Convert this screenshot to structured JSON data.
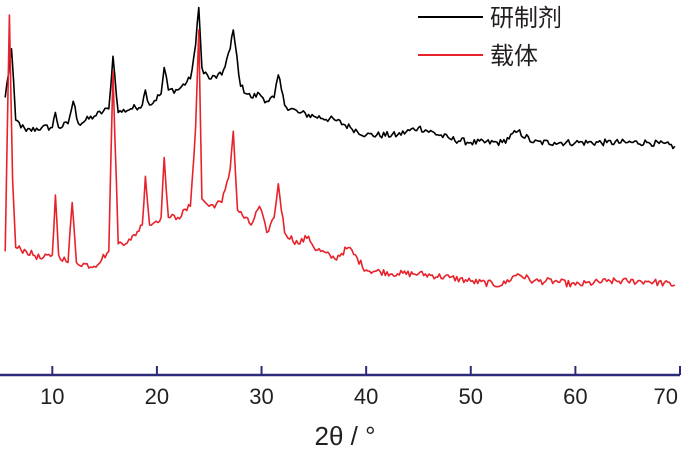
{
  "chart_data": {
    "type": "line",
    "xlabel": "2θ / °",
    "ylabel": "",
    "xlim": [
      5,
      70
    ],
    "xticks": [
      10,
      20,
      30,
      40,
      50,
      60,
      70
    ],
    "xtick_labels": [
      "10",
      "20",
      "30",
      "40",
      "50",
      "60",
      "70"
    ],
    "ylim": [
      0,
      100
    ],
    "yaxis_visible": false,
    "grid": false,
    "legend": "top-right",
    "series": [
      {
        "name": "研制剂",
        "color": "#000000",
        "x": [
          5.5,
          6.1,
          6.5,
          7.5,
          9,
          10,
          10.3,
          10.6,
          11.5,
          12,
          12.5,
          14,
          15.4,
          15.8,
          16.3,
          17.5,
          18.6,
          18.9,
          19.3,
          20.4,
          20.7,
          21.1,
          22,
          23.2,
          23.7,
          24.0,
          24.3,
          25,
          26.2,
          27.0,
          27.3,
          28,
          29,
          29.8,
          30.5,
          31.2,
          31.6,
          32.2,
          33.5,
          35,
          37,
          38.5,
          40,
          43,
          45,
          48,
          50,
          53,
          54.5,
          56,
          58,
          60,
          63,
          65,
          67,
          69.5
        ],
        "y": [
          74,
          87,
          68,
          65,
          66,
          66,
          70,
          66,
          67,
          73,
          67,
          69,
          71,
          85,
          70,
          71,
          72,
          76,
          72,
          75,
          82,
          76,
          76,
          79,
          88,
          98,
          82,
          79,
          80,
          87,
          92,
          77,
          74,
          75,
          73,
          74,
          80,
          72,
          70,
          69,
          68,
          66,
          64,
          64,
          66,
          63,
          62,
          62,
          65,
          62,
          62,
          62,
          62,
          62,
          62,
          61
        ]
      },
      {
        "name": "载体",
        "color": "#e8222a",
        "x": [
          5.5,
          5.9,
          6.2,
          6.5,
          7.5,
          9,
          10,
          10.3,
          10.6,
          11.5,
          11.9,
          12.3,
          14,
          15.4,
          15.8,
          16.3,
          17.5,
          18.6,
          18.9,
          19.3,
          20.4,
          20.7,
          21.1,
          22,
          23.2,
          23.7,
          24.0,
          24.3,
          25,
          26.2,
          27.0,
          27.3,
          27.7,
          29,
          29.8,
          30.5,
          31.2,
          31.6,
          32.2,
          33.5,
          34.5,
          35,
          37,
          38.3,
          40,
          43,
          45,
          48,
          50,
          53,
          54.5,
          56,
          58,
          60,
          63,
          65,
          67,
          69.5
        ],
        "y": [
          33,
          96,
          52,
          34,
          33,
          31,
          32,
          48,
          32,
          30,
          46,
          30,
          29,
          33,
          81,
          35,
          36,
          40,
          53,
          40,
          42,
          58,
          42,
          42,
          45,
          66,
          92,
          47,
          45,
          46,
          55,
          65,
          44,
          40,
          45,
          38,
          42,
          51,
          38,
          35,
          37,
          34,
          31,
          34,
          28,
          27,
          27,
          26,
          25,
          24,
          27,
          25,
          25,
          24,
          25,
          25,
          25,
          24
        ]
      }
    ]
  }
}
